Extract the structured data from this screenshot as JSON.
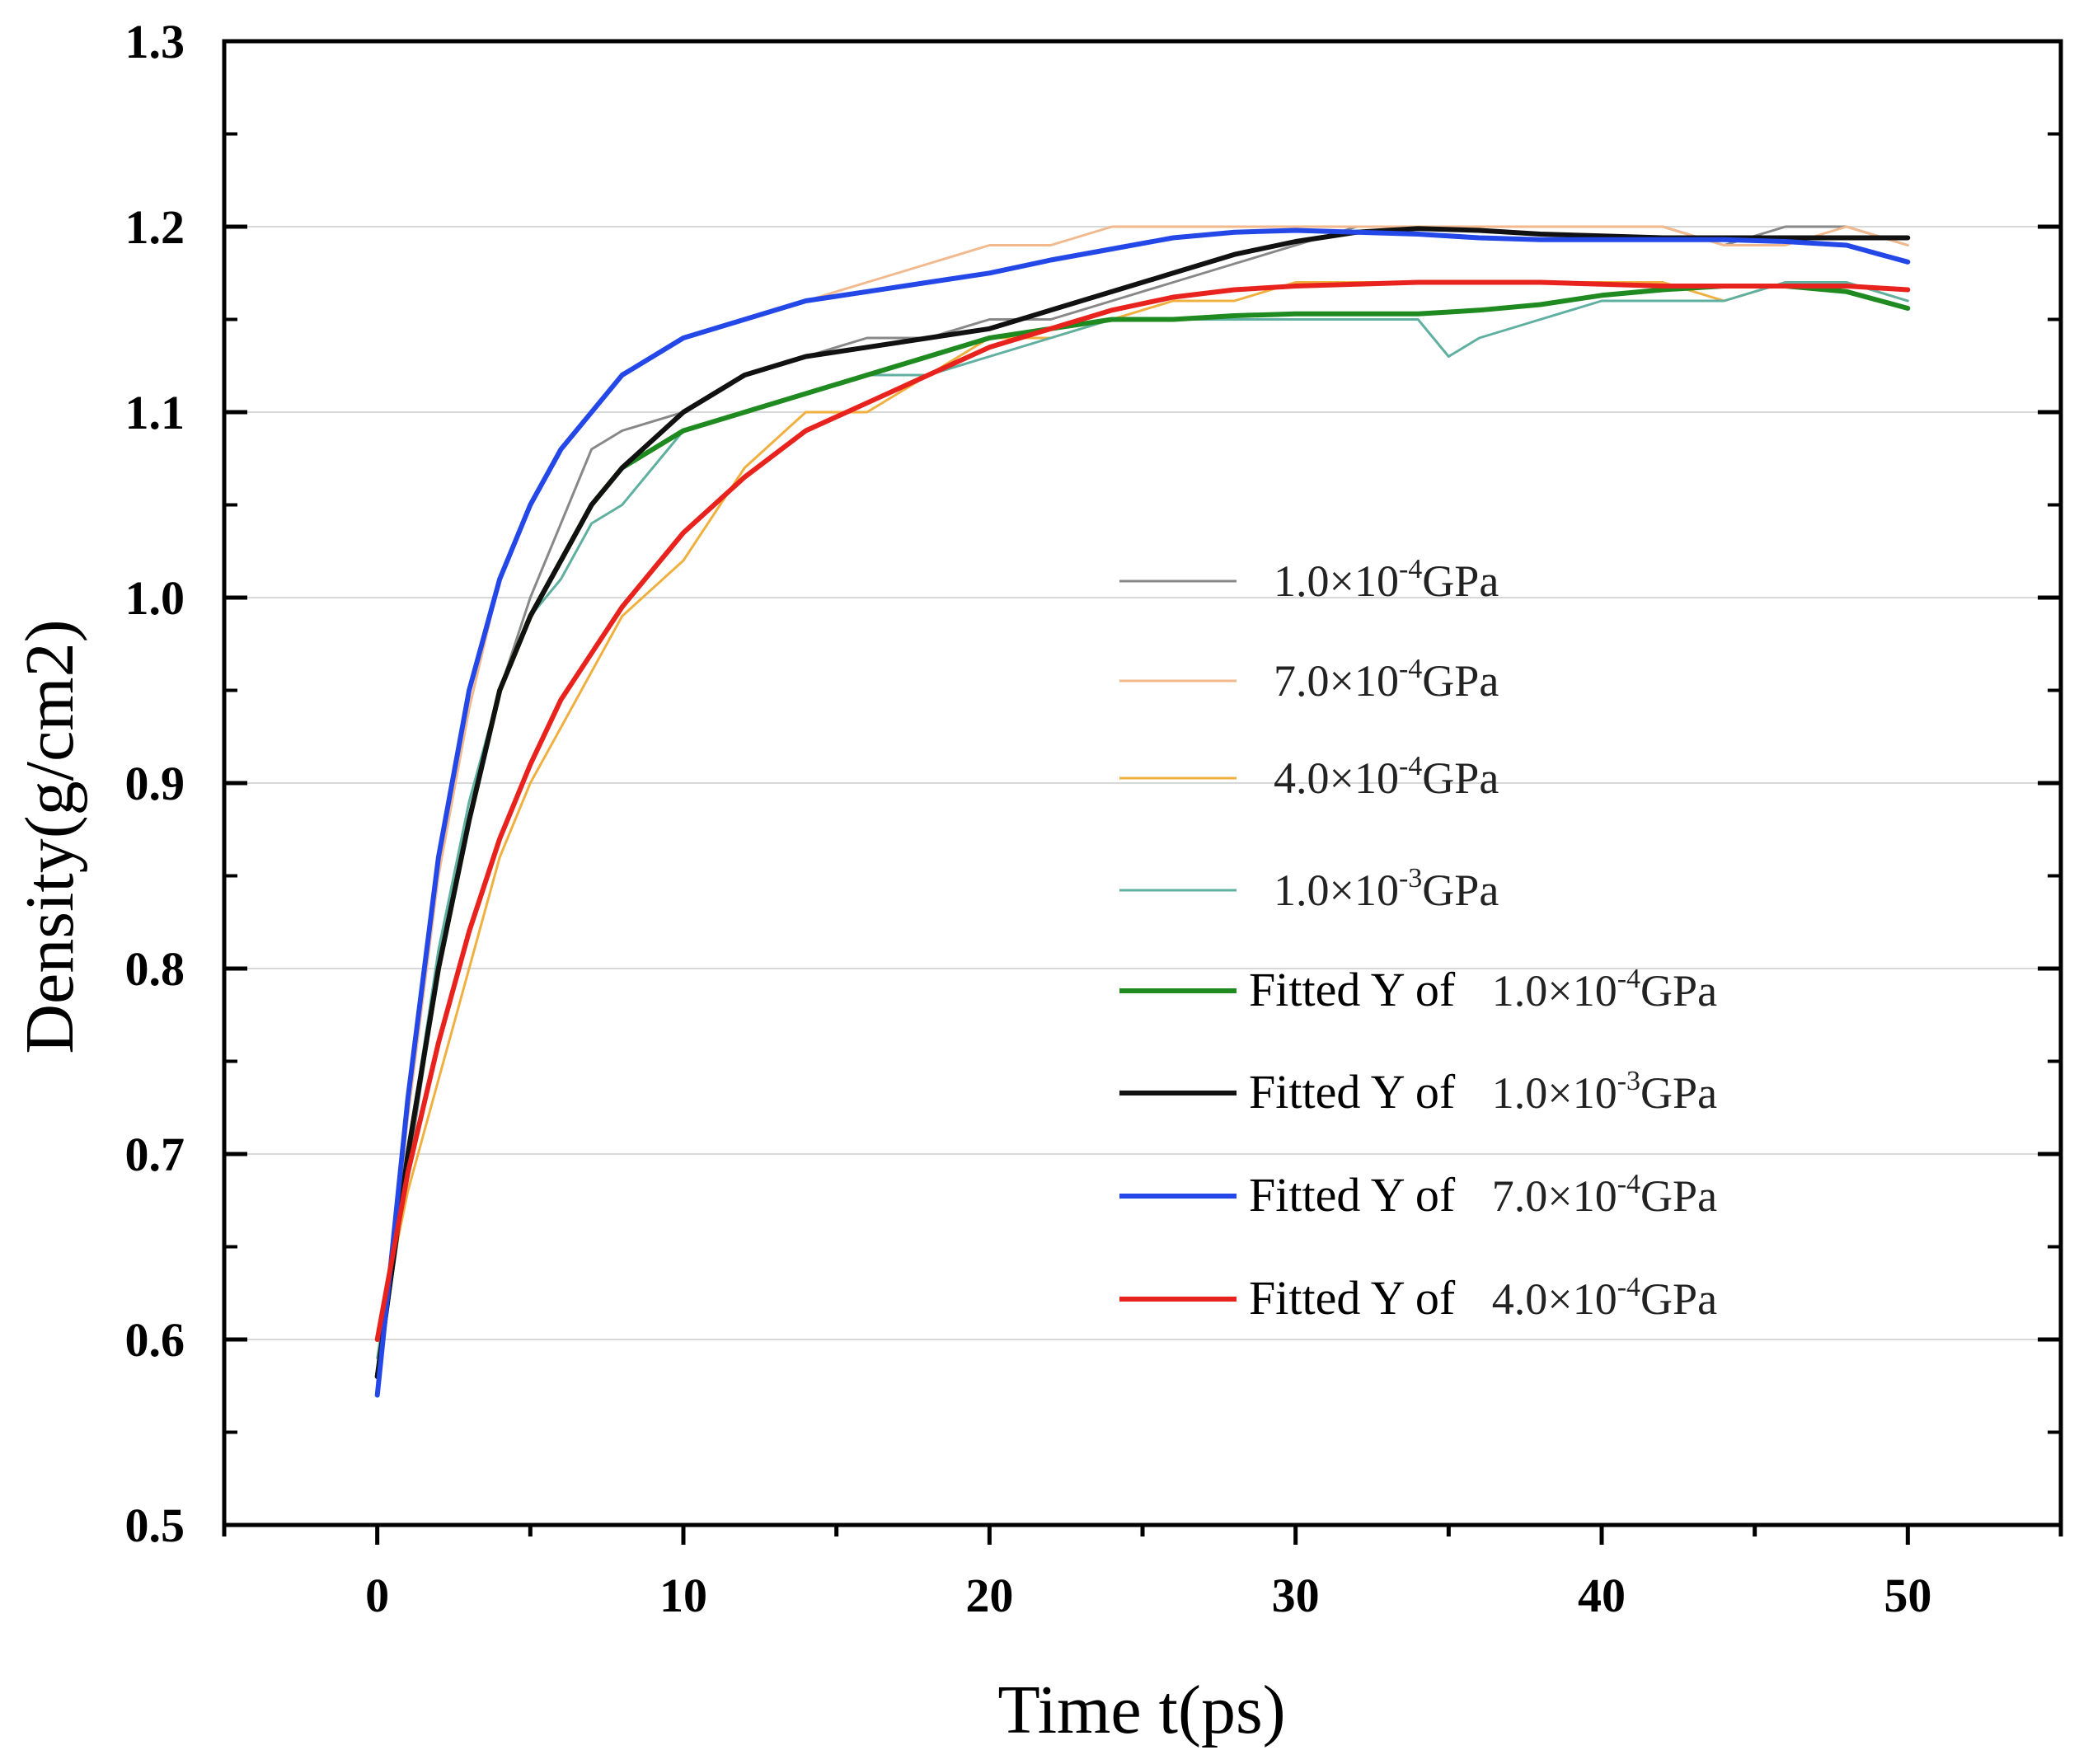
{
  "chart_data": {
    "type": "line",
    "title": "",
    "xlabel": "Time  t(ps)",
    "ylabel": "Density(g/cm2)",
    "xlim": [
      -5,
      55
    ],
    "ylim": [
      0.5,
      1.3
    ],
    "xticks": [
      0,
      10,
      20,
      30,
      40,
      50
    ],
    "xtick_labels": [
      "0",
      "10",
      "20",
      "30",
      "40",
      "50"
    ],
    "yticks": [
      0.5,
      0.6,
      0.7,
      0.8,
      0.9,
      1.0,
      1.1,
      1.2,
      1.3
    ],
    "ytick_labels": [
      "0.5",
      "0.6",
      "0.7",
      "0.8",
      "0.9",
      "1.0",
      "1.1",
      "1.2",
      "1.3"
    ],
    "grid": "horizontal",
    "legend_position": "center-right",
    "series": [
      {
        "name": "1.0×10⁻⁴GPa",
        "prefix": "",
        "base": "1.0×10",
        "exp": "-4",
        "unit": "GPa",
        "kind": "raw",
        "color": "#888888",
        "x": [
          0,
          1,
          2,
          3,
          4,
          5,
          6,
          7,
          8,
          10,
          12,
          14,
          16,
          18,
          20,
          22,
          24,
          26,
          28,
          30,
          32,
          34,
          36,
          38,
          40,
          42,
          44,
          46,
          48,
          50
        ],
        "y": [
          0.58,
          0.69,
          0.8,
          0.88,
          0.95,
          1.0,
          1.04,
          1.08,
          1.09,
          1.1,
          1.12,
          1.13,
          1.14,
          1.14,
          1.15,
          1.15,
          1.16,
          1.17,
          1.18,
          1.19,
          1.2,
          1.2,
          1.2,
          1.2,
          1.2,
          1.2,
          1.19,
          1.2,
          1.2,
          1.19
        ]
      },
      {
        "name": "7.0×10⁻⁴GPa",
        "prefix": "",
        "base": "7.0×10",
        "exp": "-4",
        "unit": "GPa",
        "kind": "raw",
        "color": "#f2b98e",
        "x": [
          0,
          1,
          2,
          3,
          4,
          5,
          6,
          7,
          8,
          10,
          12,
          14,
          16,
          18,
          20,
          22,
          24,
          26,
          28,
          30,
          32,
          34,
          36,
          38,
          40,
          42,
          44,
          46,
          48,
          50
        ],
        "y": [
          0.57,
          0.72,
          0.85,
          0.94,
          1.01,
          1.05,
          1.08,
          1.1,
          1.12,
          1.14,
          1.15,
          1.16,
          1.17,
          1.18,
          1.19,
          1.19,
          1.2,
          1.2,
          1.2,
          1.2,
          1.2,
          1.2,
          1.2,
          1.2,
          1.2,
          1.2,
          1.19,
          1.19,
          1.2,
          1.19
        ]
      },
      {
        "name": "4.0×10⁻⁴GPa",
        "prefix": "",
        "base": "4.0×10",
        "exp": "-4",
        "unit": "GPa",
        "kind": "raw",
        "color": "#f0b040",
        "x": [
          0,
          1,
          2,
          3,
          4,
          5,
          6,
          7,
          8,
          10,
          12,
          14,
          16,
          18,
          20,
          22,
          24,
          26,
          28,
          30,
          32,
          34,
          36,
          38,
          40,
          42,
          44,
          46,
          48,
          50
        ],
        "y": [
          0.6,
          0.68,
          0.74,
          0.8,
          0.86,
          0.9,
          0.93,
          0.96,
          0.99,
          1.02,
          1.07,
          1.1,
          1.1,
          1.12,
          1.14,
          1.14,
          1.15,
          1.16,
          1.16,
          1.17,
          1.17,
          1.17,
          1.17,
          1.17,
          1.17,
          1.17,
          1.16,
          1.17,
          1.17,
          1.16
        ]
      },
      {
        "name": "1.0×10⁻³GPa",
        "prefix": "",
        "base": "1.0×10",
        "exp": "-3",
        "unit": "GPa",
        "kind": "raw",
        "color": "#5fb0a0",
        "x": [
          0,
          1,
          2,
          3,
          4,
          5,
          6,
          7,
          8,
          10,
          12,
          14,
          16,
          18,
          20,
          22,
          24,
          26,
          28,
          30,
          32,
          34,
          35,
          36,
          38,
          40,
          42,
          44,
          46,
          48,
          50
        ],
        "y": [
          0.59,
          0.7,
          0.81,
          0.89,
          0.95,
          0.99,
          1.01,
          1.04,
          1.05,
          1.09,
          1.1,
          1.11,
          1.12,
          1.12,
          1.13,
          1.14,
          1.15,
          1.15,
          1.15,
          1.15,
          1.15,
          1.15,
          1.13,
          1.14,
          1.15,
          1.16,
          1.16,
          1.16,
          1.17,
          1.17,
          1.16
        ]
      },
      {
        "name": "Fitted Y of 1.0×10⁻⁴GPa",
        "prefix": "Fitted Y of ",
        "base": "1.0×10",
        "exp": "-4",
        "unit": "GPa",
        "kind": "fit",
        "color": "#1f8a1f",
        "x": [
          0,
          1,
          2,
          3,
          4,
          5,
          6,
          7,
          8,
          10,
          12,
          14,
          16,
          18,
          20,
          22,
          24,
          26,
          28,
          30,
          32,
          34,
          36,
          38,
          40,
          42,
          44,
          46,
          48,
          50
        ],
        "y": [
          0.58,
          0.7,
          0.8,
          0.88,
          0.95,
          0.99,
          1.02,
          1.05,
          1.07,
          1.09,
          1.1,
          1.11,
          1.12,
          1.13,
          1.14,
          1.145,
          1.15,
          1.15,
          1.152,
          1.153,
          1.153,
          1.153,
          1.155,
          1.158,
          1.163,
          1.166,
          1.168,
          1.168,
          1.165,
          1.156
        ]
      },
      {
        "name": "Fitted Y of 1.0×10⁻³GPa",
        "prefix": "Fitted Y of ",
        "base": "1.0×10",
        "exp": "-3",
        "unit": "GPa",
        "kind": "fit",
        "color": "#111111",
        "x": [
          0,
          1,
          2,
          3,
          4,
          5,
          6,
          7,
          8,
          10,
          12,
          14,
          16,
          18,
          20,
          22,
          24,
          26,
          28,
          30,
          32,
          34,
          36,
          38,
          40,
          42,
          44,
          46,
          48,
          50
        ],
        "y": [
          0.58,
          0.7,
          0.8,
          0.88,
          0.95,
          0.99,
          1.02,
          1.05,
          1.07,
          1.1,
          1.12,
          1.13,
          1.135,
          1.14,
          1.145,
          1.155,
          1.165,
          1.175,
          1.185,
          1.192,
          1.197,
          1.199,
          1.198,
          1.196,
          1.195,
          1.194,
          1.194,
          1.194,
          1.194,
          1.194
        ]
      },
      {
        "name": "Fitted Y of 7.0×10⁻⁴GPa",
        "prefix": "Fitted Y of ",
        "base": "7.0×10",
        "exp": "-4",
        "unit": "GPa",
        "kind": "fit",
        "color": "#2448e8",
        "x": [
          0,
          1,
          2,
          3,
          4,
          5,
          6,
          7,
          8,
          10,
          12,
          14,
          16,
          18,
          20,
          22,
          24,
          26,
          28,
          30,
          32,
          34,
          36,
          38,
          40,
          42,
          44,
          46,
          48,
          50
        ],
        "y": [
          0.57,
          0.73,
          0.86,
          0.95,
          1.01,
          1.05,
          1.08,
          1.1,
          1.12,
          1.14,
          1.15,
          1.16,
          1.165,
          1.17,
          1.175,
          1.182,
          1.188,
          1.194,
          1.197,
          1.198,
          1.197,
          1.196,
          1.194,
          1.193,
          1.193,
          1.193,
          1.193,
          1.192,
          1.19,
          1.181
        ]
      },
      {
        "name": "Fitted Y of 4.0×10⁻⁴GPa",
        "prefix": "Fitted Y of ",
        "base": "4.0×10",
        "exp": "-4",
        "unit": "GPa",
        "kind": "fit",
        "color": "#e8231d",
        "x": [
          0,
          1,
          2,
          3,
          4,
          5,
          6,
          7,
          8,
          10,
          12,
          14,
          16,
          18,
          20,
          22,
          24,
          26,
          28,
          30,
          32,
          34,
          36,
          38,
          40,
          42,
          44,
          46,
          48,
          50
        ],
        "y": [
          0.6,
          0.69,
          0.76,
          0.82,
          0.87,
          0.91,
          0.945,
          0.97,
          0.995,
          1.035,
          1.065,
          1.09,
          1.105,
          1.12,
          1.135,
          1.145,
          1.155,
          1.162,
          1.166,
          1.168,
          1.169,
          1.17,
          1.17,
          1.17,
          1.169,
          1.168,
          1.168,
          1.168,
          1.168,
          1.166
        ]
      }
    ]
  }
}
